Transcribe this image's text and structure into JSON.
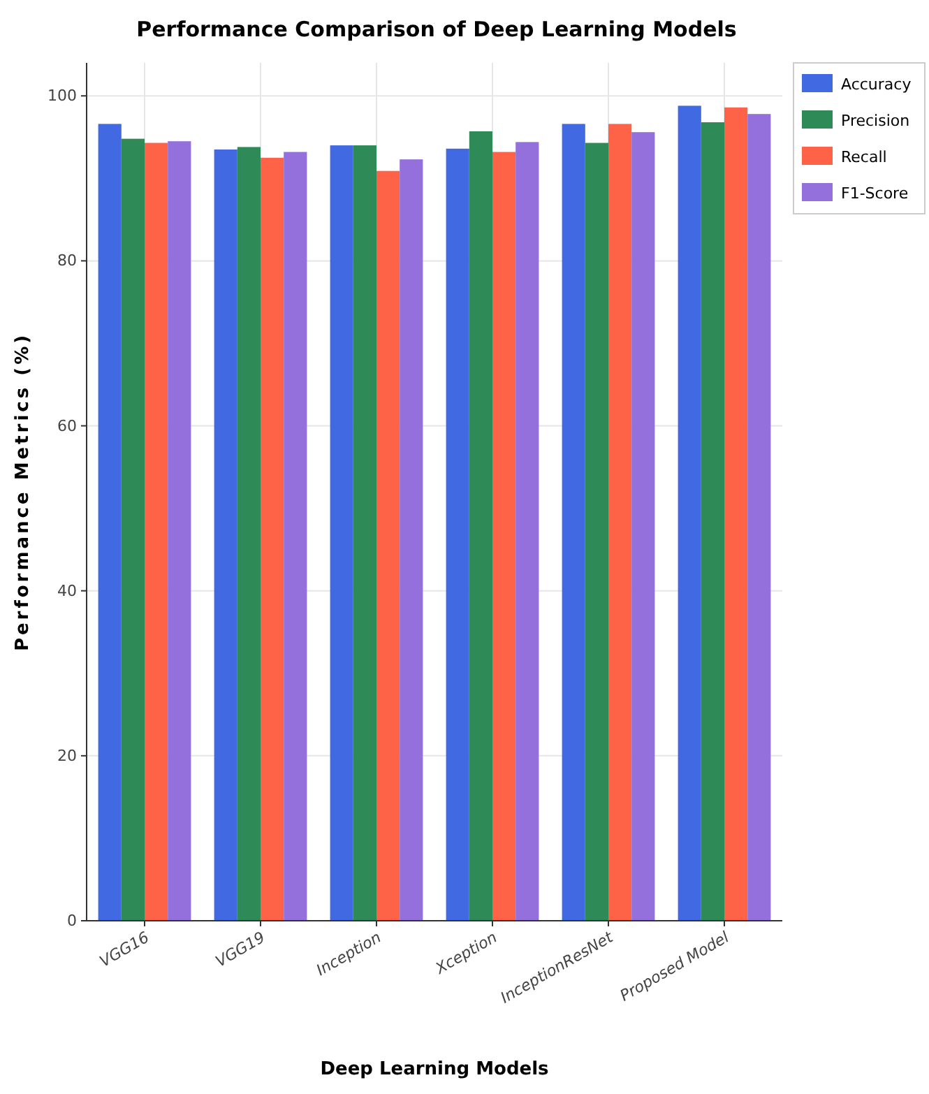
{
  "chart_data": {
    "type": "bar",
    "title": "Performance Comparison of Deep Learning Models",
    "xlabel": "Deep Learning Models",
    "ylabel": "Performance Metrics (%)",
    "categories": [
      "VGG16",
      "VGG19",
      "Inception",
      "Xception",
      "InceptionResNet",
      "Proposed Model"
    ],
    "series": [
      {
        "name": "Accuracy",
        "color": "#4169e1",
        "values": [
          96.6,
          93.5,
          94.0,
          93.6,
          96.6,
          98.8
        ]
      },
      {
        "name": "Precision",
        "color": "#2e8b57",
        "values": [
          94.8,
          93.8,
          94.0,
          95.7,
          94.3,
          96.8
        ]
      },
      {
        "name": "Recall",
        "color": "#ff6347",
        "values": [
          94.3,
          92.5,
          90.9,
          93.2,
          96.6,
          98.6
        ]
      },
      {
        "name": "F1-Score",
        "color": "#9370db",
        "values": [
          94.5,
          93.2,
          92.3,
          94.4,
          95.6,
          97.8
        ]
      }
    ],
    "ylim": [
      0,
      104
    ],
    "yticks": [
      0,
      20,
      40,
      60,
      80,
      100
    ],
    "grid": true,
    "legend": "top right"
  }
}
